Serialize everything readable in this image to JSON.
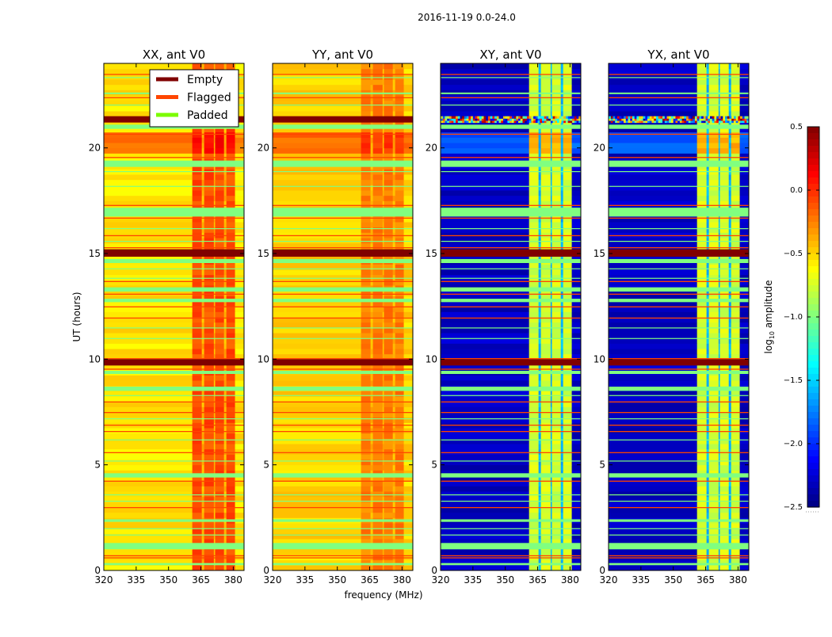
{
  "chart_data": {
    "type": "heatmap",
    "title": "2016-11-19 0.0-24.0",
    "xlabel": "frequency (MHz)",
    "ylabel": "UT (hours)",
    "xlim": [
      320,
      385
    ],
    "ylim": [
      0,
      24
    ],
    "xticks": [
      320,
      335,
      350,
      365,
      380
    ],
    "yticks": [
      0,
      5,
      10,
      15,
      20
    ],
    "high_band_columns": [
      [
        361,
        365.4
      ],
      [
        366.5,
        371
      ],
      [
        371.6,
        375.7
      ],
      [
        376.8,
        380.8
      ]
    ],
    "panels": [
      {
        "title": "XX, ant V0",
        "low": -0.55,
        "high": -0.1,
        "gap": -0.4,
        "warm_band": [
          19.6,
          20.6
        ],
        "warm_low": -0.25,
        "warm_high": 0.1,
        "empty_bands": [
          [
            21.2,
            21.5
          ],
          [
            14.85,
            15.2
          ],
          [
            9.7,
            10.0
          ]
        ],
        "noisy_bands": []
      },
      {
        "title": "YY, ant V0",
        "low": -0.5,
        "high": -0.25,
        "gap": -0.4,
        "warm_band": [
          19.6,
          20.6
        ],
        "warm_low": -0.2,
        "warm_high": -0.05,
        "empty_bands": [
          [
            21.2,
            21.5
          ],
          [
            14.85,
            15.2
          ],
          [
            9.7,
            10.0
          ]
        ],
        "noisy_bands": []
      },
      {
        "title": "XY, ant V0",
        "low": -2.3,
        "high": -0.75,
        "gap": -1.6,
        "warm_band": [
          19.6,
          20.6
        ],
        "warm_low": -1.85,
        "warm_high": -0.4,
        "empty_bands": [
          [
            14.85,
            15.2
          ],
          [
            9.7,
            10.0
          ]
        ],
        "noisy_bands": [
          [
            21.2,
            21.5
          ]
        ]
      },
      {
        "title": "YX, ant V0",
        "low": -2.3,
        "high": -0.75,
        "gap": -1.6,
        "warm_band": [
          19.6,
          20.6
        ],
        "warm_low": -1.85,
        "warm_high": -0.4,
        "empty_bands": [
          [
            14.85,
            15.2
          ],
          [
            9.7,
            10.0
          ]
        ],
        "noisy_bands": [
          [
            21.2,
            21.5
          ]
        ]
      }
    ],
    "flagged_lines": [
      23.5,
      22.4,
      20.67,
      19.57,
      17.3,
      16.7,
      15.87,
      15.3,
      13.7,
      13.1,
      12.5,
      11.97,
      10.05,
      9.55,
      8.0,
      7.5,
      6.9,
      6.6,
      5.6,
      4.25,
      3.0,
      0.72,
      0.62
    ],
    "padded_bands": [
      [
        22.55,
        22.62
      ],
      [
        20.9,
        21.1
      ],
      [
        19.1,
        19.4
      ],
      [
        16.75,
        17.17
      ],
      [
        14.55,
        14.74
      ],
      [
        13.2,
        13.4
      ],
      [
        12.7,
        12.86
      ],
      [
        9.3,
        9.45
      ],
      [
        8.5,
        8.7
      ],
      [
        4.4,
        4.6
      ],
      [
        2.3,
        2.42
      ],
      [
        1.0,
        1.3
      ],
      [
        0.25,
        0.35
      ]
    ],
    "padded_thin": [
      23.35,
      22.05,
      18.9,
      18.2,
      16.2,
      15.6,
      14.3,
      13.85,
      11.5,
      11.0,
      8.3,
      7.2,
      6.2,
      5.2,
      3.6,
      3.3,
      2.0,
      1.7
    ],
    "legend": {
      "placement": "top-right of first panel",
      "entries": [
        {
          "label": "Empty",
          "color": "#800000"
        },
        {
          "label": "Flagged",
          "color": "#ff4500"
        },
        {
          "label": "Padded",
          "color": "#7cfc00"
        }
      ]
    },
    "padded_fill": "#80ff80",
    "colorbar": {
      "label": "log10 amplitude",
      "label_main": "log",
      "label_sub": "10",
      "label_rest": " amplitude",
      "range": [
        -2.5,
        0.5
      ],
      "ticks": [
        "0.5",
        "0.0",
        "−0.5",
        "−1.0",
        "−1.5",
        "−2.0",
        "−2.5"
      ],
      "tick_values": [
        0.5,
        0.0,
        -0.5,
        -1.0,
        -1.5,
        -2.0,
        -2.5
      ],
      "colormap": "jet"
    }
  }
}
